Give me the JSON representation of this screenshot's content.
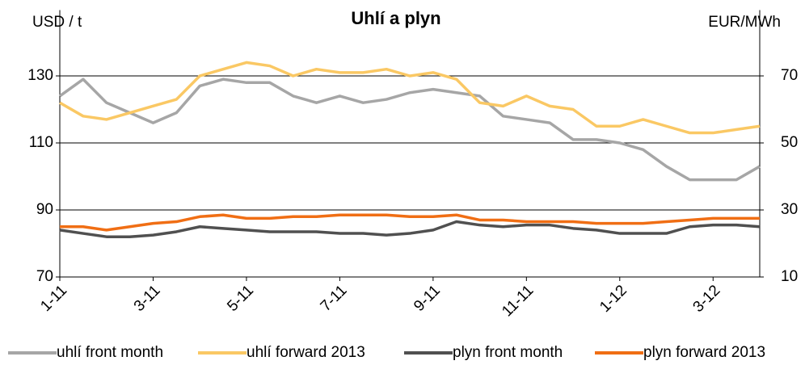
{
  "chart_data": {
    "type": "line",
    "title": "Uhlí a plyn",
    "y_label": "USD / t",
    "y2_label": "EUR/MWh",
    "categories": [
      "1-11",
      null,
      null,
      null,
      "3-11",
      null,
      null,
      null,
      "5-11",
      null,
      null,
      null,
      "7-11",
      null,
      null,
      null,
      "9-11",
      null,
      null,
      null,
      "11-11",
      null,
      null,
      null,
      "1-12",
      null,
      null,
      null,
      "3-12",
      null,
      null
    ],
    "ylim": [
      70,
      140
    ],
    "yticks": [
      70,
      90,
      110,
      130
    ],
    "y2lim": [
      10,
      80
    ],
    "y2ticks": [
      10,
      30,
      50,
      70
    ],
    "grid": true,
    "legend": "bottom",
    "series": [
      {
        "name": "uhlí front month",
        "color": "#a6a6a6",
        "axis": "y",
        "values": [
          124,
          129,
          122,
          119,
          116,
          119,
          127,
          129,
          128,
          128,
          124,
          122,
          124,
          122,
          123,
          125,
          126,
          125,
          124,
          118,
          117,
          116,
          111,
          111,
          110,
          108,
          103,
          99,
          99,
          99,
          103
        ]
      },
      {
        "name": "uhlí forward 2013",
        "color": "#fac864",
        "axis": "y",
        "values": [
          122,
          118,
          117,
          119,
          121,
          123,
          130,
          132,
          134,
          133,
          130,
          132,
          131,
          131,
          132,
          130,
          131,
          129,
          122,
          121,
          124,
          121,
          120,
          115,
          115,
          117,
          115,
          113,
          113,
          114,
          115
        ]
      },
      {
        "name": "plyn front month",
        "color": "#505050",
        "axis": "y2",
        "values": [
          24,
          23,
          22,
          22,
          22.5,
          23.5,
          25,
          24.5,
          24,
          23.5,
          23.5,
          23.5,
          23,
          23,
          22.5,
          23,
          24,
          26.5,
          25.5,
          25,
          25.5,
          25.5,
          24.5,
          24,
          23,
          23,
          23,
          25,
          25.5,
          25.5,
          25
        ]
      },
      {
        "name": "plyn forward 2013",
        "color": "#f06e14",
        "axis": "y2",
        "values": [
          25,
          25,
          24,
          25,
          26,
          26.5,
          28,
          28.5,
          27.5,
          27.5,
          28,
          28,
          28.5,
          28.5,
          28.5,
          28,
          28,
          28.5,
          27,
          27,
          26.5,
          26.5,
          26.5,
          26,
          26,
          26,
          26.5,
          27,
          27.5,
          27.5,
          27.5
        ]
      }
    ]
  }
}
